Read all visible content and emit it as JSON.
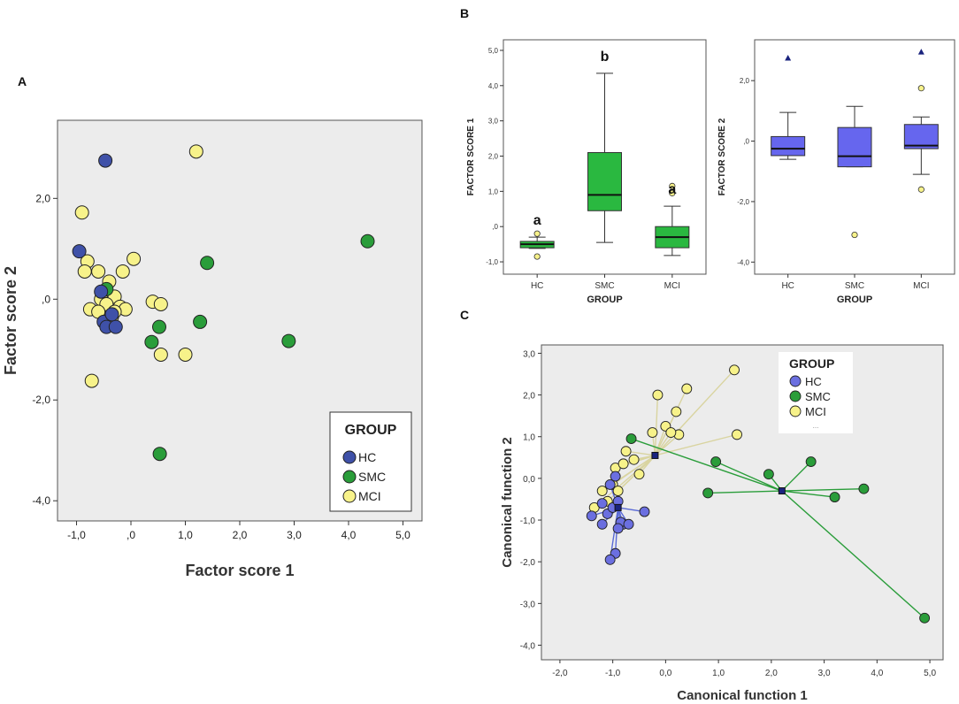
{
  "colors": {
    "hc": "#3f51a8",
    "hc_light": "#6b6fe0",
    "smc": "#2a9d3a",
    "mci": "#f7f28a",
    "box_green": "#2ab840",
    "box_blue": "#6666ee",
    "panel_bg": "#ececec",
    "outline": "#222222"
  },
  "panel_labels": {
    "a": "A",
    "b": "B",
    "c": "C"
  },
  "chart_data": [
    {
      "id": "A",
      "type": "scatter",
      "xlabel": "Factor score 1",
      "ylabel": "Factor score 2",
      "xlim": [
        -1.35,
        5.35
      ],
      "ylim": [
        -4.4,
        3.55
      ],
      "xticks": [
        -1,
        0,
        1,
        2,
        3,
        4,
        5
      ],
      "xtick_labels": [
        "-1,0",
        ",0",
        "1,0",
        "2,0",
        "3,0",
        "4,0",
        "5,0"
      ],
      "yticks": [
        -4,
        -2,
        0,
        2
      ],
      "ytick_labels": [
        "-4,0",
        "-2,0",
        ",0",
        "2,0"
      ],
      "legend": {
        "title": "GROUP",
        "entries": [
          "HC",
          "SMC",
          "MCI"
        ],
        "position": "bottom-right"
      },
      "series": [
        {
          "name": "HC",
          "points": [
            [
              -0.47,
              2.75
            ],
            [
              -0.95,
              0.95
            ],
            [
              -0.55,
              0.15
            ],
            [
              -0.5,
              -0.45
            ],
            [
              -0.45,
              -0.55
            ],
            [
              -0.28,
              -0.55
            ],
            [
              -0.35,
              -0.3
            ]
          ]
        },
        {
          "name": "SMC",
          "points": [
            [
              4.35,
              1.15
            ],
            [
              1.4,
              0.72
            ],
            [
              1.27,
              -0.45
            ],
            [
              0.52,
              -0.55
            ],
            [
              0.38,
              -0.85
            ],
            [
              2.9,
              -0.83
            ],
            [
              0.53,
              -3.07
            ],
            [
              -0.45,
              0.2
            ]
          ]
        },
        {
          "name": "MCI",
          "points": [
            [
              1.2,
              2.93
            ],
            [
              -0.9,
              1.72
            ],
            [
              -0.8,
              0.75
            ],
            [
              -0.85,
              0.55
            ],
            [
              -0.6,
              0.55
            ],
            [
              -0.4,
              0.35
            ],
            [
              0.05,
              0.8
            ],
            [
              -0.15,
              0.55
            ],
            [
              -0.55,
              0.0
            ],
            [
              -0.3,
              0.05
            ],
            [
              -0.45,
              -0.1
            ],
            [
              -0.75,
              -0.2
            ],
            [
              -0.6,
              -0.25
            ],
            [
              -0.35,
              -0.35
            ],
            [
              -0.2,
              -0.15
            ],
            [
              -0.1,
              -0.2
            ],
            [
              -0.3,
              -0.25
            ],
            [
              0.4,
              -0.05
            ],
            [
              0.55,
              -0.1
            ],
            [
              0.55,
              -1.1
            ],
            [
              1.0,
              -1.1
            ],
            [
              -0.72,
              -1.62
            ]
          ]
        }
      ]
    },
    {
      "id": "B1",
      "type": "box",
      "xlabel": "GROUP",
      "ylabel": "FACTOR SCORE 1",
      "categories": [
        "HC",
        "SMC",
        "MCI"
      ],
      "ylim": [
        -1.35,
        5.3
      ],
      "yticks": [
        -1,
        0,
        1,
        2,
        3,
        4,
        5
      ],
      "ytick_labels": [
        "-1,0",
        ",0",
        "1,0",
        "2,0",
        "3,0",
        "4,0",
        "5,0"
      ],
      "boxes": [
        {
          "name": "HC",
          "min": -0.62,
          "q1": -0.6,
          "median": -0.5,
          "q3": -0.42,
          "max": -0.3,
          "outliers": [
            -0.2,
            -0.85
          ],
          "extremes": []
        },
        {
          "name": "SMC",
          "min": -0.45,
          "q1": 0.45,
          "median": 0.9,
          "q3": 2.1,
          "max": 4.35,
          "outliers": [],
          "extremes": []
        },
        {
          "name": "MCI",
          "min": -0.82,
          "q1": -0.6,
          "median": -0.3,
          "q3": 0.0,
          "max": 0.58,
          "outliers": [
            0.95,
            1.15
          ],
          "extremes": []
        }
      ],
      "annotations": [
        "a",
        "b",
        "a"
      ]
    },
    {
      "id": "B2",
      "type": "box",
      "xlabel": "GROUP",
      "ylabel": "FACTOR SCORE 2",
      "categories": [
        "HC",
        "SMC",
        "MCI"
      ],
      "ylim": [
        -4.4,
        3.35
      ],
      "yticks": [
        -4,
        -2,
        0,
        2
      ],
      "ytick_labels": [
        "-4,0",
        "-2,0",
        ",0",
        "2,0"
      ],
      "boxes": [
        {
          "name": "HC",
          "min": -0.6,
          "q1": -0.48,
          "median": -0.25,
          "q3": 0.15,
          "max": 0.95,
          "outliers": [],
          "extremes": [
            2.75
          ]
        },
        {
          "name": "SMC",
          "min": -0.85,
          "q1": -0.85,
          "median": -0.5,
          "q3": 0.45,
          "max": 1.15,
          "outliers": [
            -3.1
          ],
          "extremes": []
        },
        {
          "name": "MCI",
          "min": -1.1,
          "q1": -0.25,
          "median": -0.15,
          "q3": 0.55,
          "max": 0.8,
          "outliers": [
            1.75,
            -1.6
          ],
          "extremes": [
            2.95
          ]
        }
      ]
    },
    {
      "id": "C",
      "type": "scatter",
      "xlabel": "Canonical function 1",
      "ylabel": "Canonical function 2",
      "xlim": [
        -2.35,
        5.25
      ],
      "ylim": [
        -4.35,
        3.2
      ],
      "xticks": [
        -2,
        -1,
        0,
        1,
        2,
        3,
        4,
        5
      ],
      "xtick_labels": [
        "-2,0",
        "-1,0",
        "0,0",
        "1,0",
        "2,0",
        "3,0",
        "4,0",
        "5,0"
      ],
      "yticks": [
        -4,
        -3,
        -2,
        -1,
        0,
        1,
        2,
        3
      ],
      "ytick_labels": [
        "-4,0",
        "-3,0",
        "-2,0",
        "-1,0",
        "0,0",
        "1,0",
        "2,0",
        "3,0"
      ],
      "legend": {
        "title": "GROUP",
        "entries": [
          "HC",
          "SMC",
          "MCI"
        ],
        "extra": "...",
        "position": "top-right"
      },
      "centroids": [
        {
          "name": "HC",
          "x": -0.9,
          "y": -0.7
        },
        {
          "name": "SMC",
          "x": 2.2,
          "y": -0.3
        },
        {
          "name": "MCI",
          "x": -0.2,
          "y": 0.55
        }
      ],
      "series": [
        {
          "name": "HC",
          "points": [
            [
              -1.4,
              -0.9
            ],
            [
              -1.2,
              -1.1
            ],
            [
              -1.1,
              -0.85
            ],
            [
              -1.0,
              -0.7
            ],
            [
              -0.9,
              -0.55
            ],
            [
              -0.8,
              -1.1
            ],
            [
              -1.05,
              -0.15
            ],
            [
              -0.95,
              0.05
            ],
            [
              -0.85,
              -1.05
            ],
            [
              -0.7,
              -1.1
            ],
            [
              -0.4,
              -0.8
            ],
            [
              -1.2,
              -0.6
            ],
            [
              -0.9,
              -1.2
            ],
            [
              -0.95,
              -1.8
            ],
            [
              -1.05,
              -1.95
            ]
          ]
        },
        {
          "name": "SMC",
          "points": [
            [
              -0.65,
              0.95
            ],
            [
              0.95,
              0.4
            ],
            [
              1.95,
              0.1
            ],
            [
              2.75,
              0.4
            ],
            [
              3.2,
              -0.45
            ],
            [
              3.75,
              -0.25
            ],
            [
              0.8,
              -0.35
            ],
            [
              4.9,
              -3.35
            ]
          ]
        },
        {
          "name": "MCI",
          "points": [
            [
              1.3,
              2.6
            ],
            [
              0.4,
              2.15
            ],
            [
              -0.15,
              2.0
            ],
            [
              0.2,
              1.6
            ],
            [
              0.25,
              1.05
            ],
            [
              0.0,
              1.25
            ],
            [
              0.1,
              1.1
            ],
            [
              -0.25,
              1.1
            ],
            [
              1.35,
              1.05
            ],
            [
              -0.75,
              0.65
            ],
            [
              -0.6,
              0.45
            ],
            [
              -0.5,
              0.1
            ],
            [
              -0.95,
              0.25
            ],
            [
              -0.8,
              0.35
            ],
            [
              -1.2,
              -0.3
            ],
            [
              -1.0,
              -0.15
            ],
            [
              -1.35,
              -0.7
            ],
            [
              -1.1,
              -0.55
            ],
            [
              -0.9,
              -0.3
            ]
          ]
        }
      ]
    }
  ]
}
